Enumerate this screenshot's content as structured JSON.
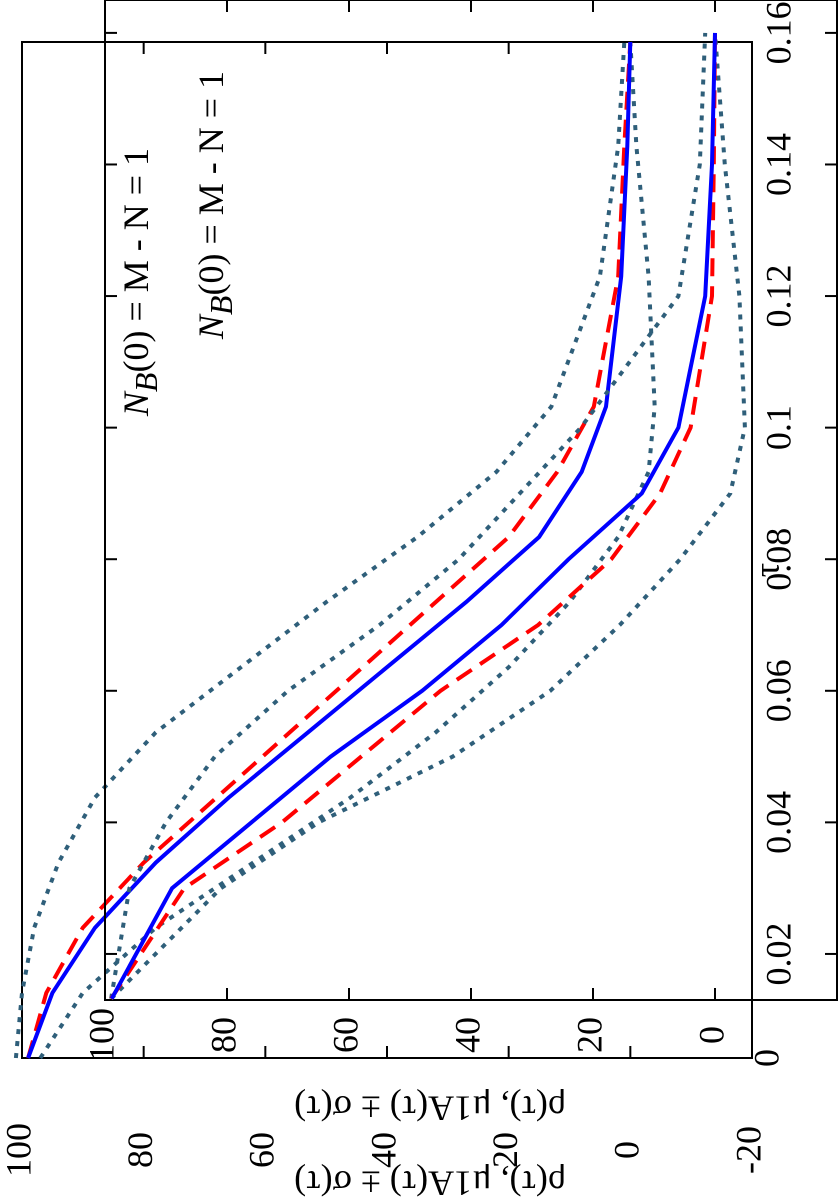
{
  "chart_data": [
    {
      "type": "line",
      "ylabel": "ρ(τ), μ1A(τ) ± σ(τ)",
      "annotation": {
        "main": "N",
        "sub": "B",
        "rest": "(0) = M - N = 1"
      },
      "x": [
        0,
        0.01,
        0.02,
        0.03,
        0.04,
        0.05,
        0.06,
        0.07,
        0.08,
        0.09,
        0.1,
        0.12,
        0.14,
        0.156
      ],
      "series": [
        {
          "color": "#2f5f7a",
          "style": "dotted",
          "values": [
            101,
            100,
            98,
            94,
            88,
            78,
            64,
            50,
            35,
            22,
            13,
            5,
            2,
            1
          ]
        },
        {
          "color": "#2f5f7a",
          "style": "dotted",
          "values": [
            97,
            90,
            78,
            62,
            46,
            32,
            20,
            10,
            2,
            -3,
            -4,
            -3,
            -1,
            0
          ]
        },
        {
          "color": "#ff0000",
          "style": "dashed",
          "values": [
            99,
            96,
            90,
            80,
            68,
            56,
            44,
            32,
            20,
            12,
            6,
            2,
            1,
            0
          ]
        },
        {
          "color": "#0000ff",
          "style": "solid",
          "values": [
            99,
            95,
            88,
            78,
            66,
            53,
            40,
            27,
            15,
            8,
            4,
            1.5,
            0.5,
            0
          ]
        }
      ],
      "xlim": [
        0,
        0.156
      ],
      "ylim": [
        -20,
        100
      ],
      "xticks": [
        0
      ],
      "yticks": [
        100,
        80,
        60,
        40,
        20,
        0,
        -20
      ]
    },
    {
      "type": "line",
      "xlabel": "τ",
      "ylabel": "ρ(τ), μ1A(τ) ± σ(τ)",
      "annotation": {
        "main": "N",
        "sub": "B",
        "rest": "(0) = M - N = 1"
      },
      "x": [
        0.0132,
        0.03,
        0.04,
        0.05,
        0.06,
        0.07,
        0.08,
        0.09,
        0.1,
        0.12,
        0.14,
        0.16
      ],
      "series": [
        {
          "color": "#2f5f7a",
          "style": "dotted",
          "values": [
            99,
            96,
            90,
            82,
            70,
            55,
            42,
            32,
            22,
            6,
            2.5,
            1.6
          ]
        },
        {
          "color": "#2f5f7a",
          "style": "dotted",
          "values": [
            99,
            81,
            65,
            43,
            27,
            15.6,
            5.7,
            -2.5,
            -4.9,
            -4,
            -1.6,
            0
          ]
        },
        {
          "color": "#ff0000",
          "style": "dashed",
          "values": [
            99,
            87,
            71,
            58,
            45,
            29,
            17,
            9,
            4,
            0.5,
            0.2,
            0
          ]
        },
        {
          "color": "#0000ff",
          "style": "solid",
          "values": [
            98.9,
            89,
            76,
            63,
            48,
            35,
            24,
            12,
            6,
            1.6,
            0.5,
            0
          ]
        }
      ],
      "xlim": [
        0.013,
        0.165
      ],
      "ylim": [
        -20,
        100
      ],
      "xticks": [
        0.02,
        0.04,
        0.06,
        0.08,
        0.1,
        0.12,
        0.14,
        0.16
      ],
      "yticks": [
        100,
        80,
        60,
        40,
        20,
        0
      ]
    }
  ]
}
